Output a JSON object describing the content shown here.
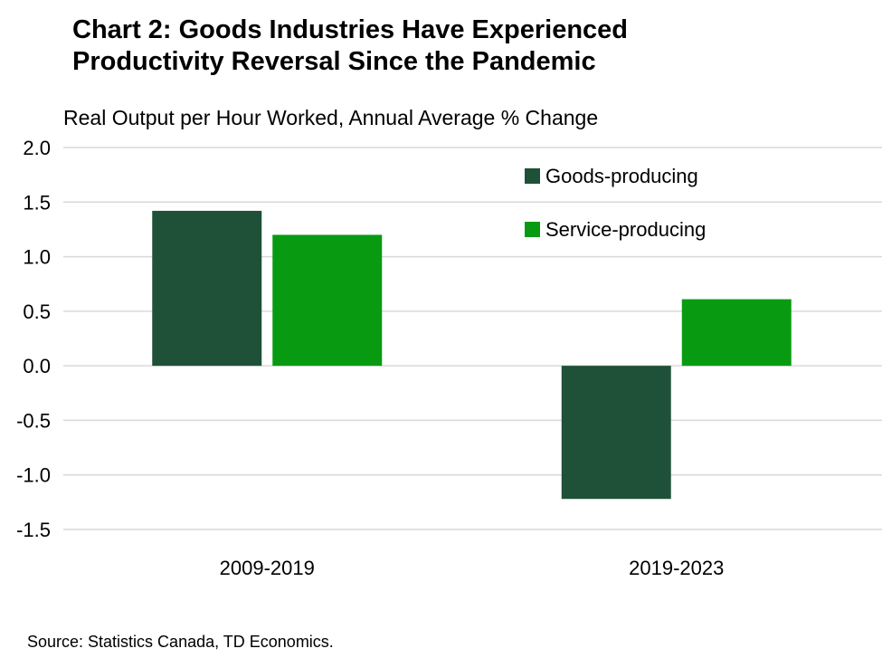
{
  "title_lines": [
    "Chart 2: Goods Industries Have Experienced",
    "Productivity Reversal Since the Pandemic"
  ],
  "source": "Source: Statistics Canada, TD Economics.",
  "chart_data": {
    "type": "bar",
    "title": "Chart 2: Goods Industries Have Experienced Productivity Reversal Since the Pandemic",
    "subtitle": "Real Output per Hour Worked, Annual Average % Change",
    "xlabel": "",
    "ylabel": "",
    "categories": [
      "2009-2019",
      "2019-2023"
    ],
    "series": [
      {
        "name": "Goods-producing",
        "values": [
          1.42,
          -1.22
        ],
        "color": "#1e5138"
      },
      {
        "name": "Service-producing",
        "values": [
          1.2,
          0.61
        ],
        "color": "#089b12"
      }
    ],
    "ylim": [
      -1.5,
      2.0
    ],
    "yticks": [
      2.0,
      1.5,
      1.0,
      0.5,
      0.0,
      -0.5,
      -1.0,
      -1.5
    ],
    "ytick_labels": [
      "2.0",
      "1.5",
      "1.0",
      "0.5",
      "0.0",
      "-0.5",
      "-1.0",
      "-1.5"
    ],
    "grid": true,
    "grid_color": "#d9d9d9",
    "legend_position": "top-right"
  }
}
